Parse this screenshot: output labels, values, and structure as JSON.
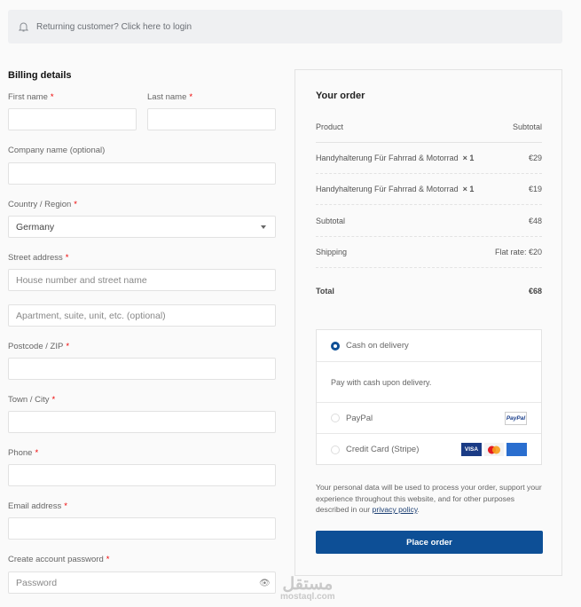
{
  "notice": {
    "text": "Returning customer? Click here to login",
    "icon": "bell-icon"
  },
  "billing": {
    "title": "Billing details",
    "first_name": "First name",
    "last_name": "Last name",
    "company": "Company name (optional)",
    "country": "Country / Region",
    "country_value": "Germany",
    "street": "Street address",
    "street_ph1": "House number and street name",
    "street_ph2": "Apartment, suite, unit, etc. (optional)",
    "postcode": "Postcode / ZIP",
    "town": "Town / City",
    "phone": "Phone",
    "email": "Email address",
    "password": "Create account password",
    "password_ph": "Password",
    "required": "*"
  },
  "order": {
    "title": "Your order",
    "col_product": "Product",
    "col_subtotal": "Subtotal",
    "items": [
      {
        "name": "Handyhalterung Für Fahrrad & Motorrad",
        "qty": "× 1",
        "price": "€29"
      },
      {
        "name": "Handyhalterung Für Fahrrad & Motorrad",
        "qty": "× 1",
        "price": "€19"
      }
    ],
    "subtotal_label": "Subtotal",
    "subtotal": "€48",
    "shipping_label": "Shipping",
    "shipping": "Flat rate: €20",
    "total_label": "Total",
    "total": "€68"
  },
  "payment": {
    "cod": "Cash on delivery",
    "cod_desc": "Pay with cash upon delivery.",
    "paypal": "PayPal",
    "paypal_logo": "PayPal",
    "stripe": "Credit Card (Stripe)",
    "card_visa": "VISA",
    "selected": "Cash on delivery"
  },
  "privacy": {
    "text": "Your personal data will be used to process your order, support your experience throughout this website, and for other purposes described in our ",
    "link": "privacy policy",
    "end": "."
  },
  "place_order": "Place order",
  "watermark": {
    "arabic": "مستقل",
    "latin": "mostaql.com"
  },
  "colors": {
    "accent": "#0d4f96",
    "required": "#e00000"
  }
}
